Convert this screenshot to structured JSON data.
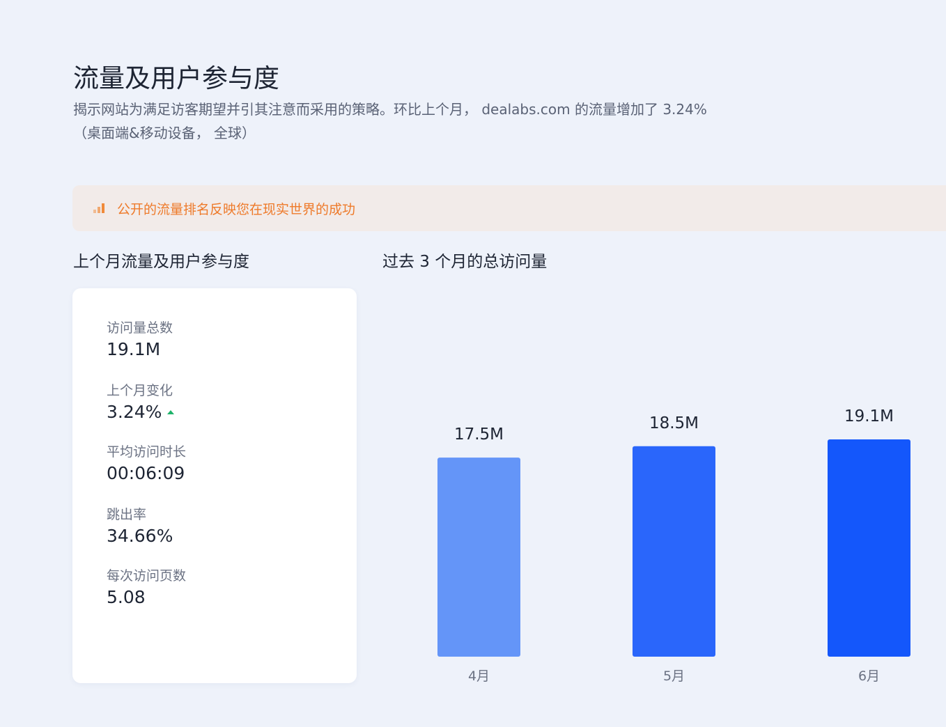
{
  "header": {
    "title": "流量及用户参与度",
    "description": "揭示网站为满足访客期望并引其注意而采用的策略。环比上个月， dealabs.com 的流量增加了 3.24%",
    "scope": "（桌面端&移动设备， 全球）"
  },
  "banner": {
    "icon": "bar-rank-icon",
    "text": "公开的流量排名反映您在现实世界的成功",
    "color": "#ee7a2a"
  },
  "left_section": {
    "title": "上个月流量及用户参与度",
    "metrics": [
      {
        "label": "访问量总数",
        "value": "19.1M"
      },
      {
        "label": "上个月变化",
        "value": "3.24%",
        "trend": "up"
      },
      {
        "label": "平均访问时长",
        "value": "00:06:09"
      },
      {
        "label": "跳出率",
        "value": "34.66%"
      },
      {
        "label": "每次访问页数",
        "value": "5.08"
      }
    ]
  },
  "chart_data": {
    "type": "bar",
    "title": "过去 3 个月的总访问量",
    "categories": [
      "4月",
      "5月",
      "6月"
    ],
    "values": [
      17.5,
      18.5,
      19.1
    ],
    "data_labels": [
      "17.5M",
      "18.5M",
      "19.1M"
    ],
    "unit": "M",
    "ylim": [
      0,
      19.1
    ],
    "grid": false,
    "colors": [
      "#6495f8",
      "#2a66fb",
      "#1457fb"
    ]
  }
}
